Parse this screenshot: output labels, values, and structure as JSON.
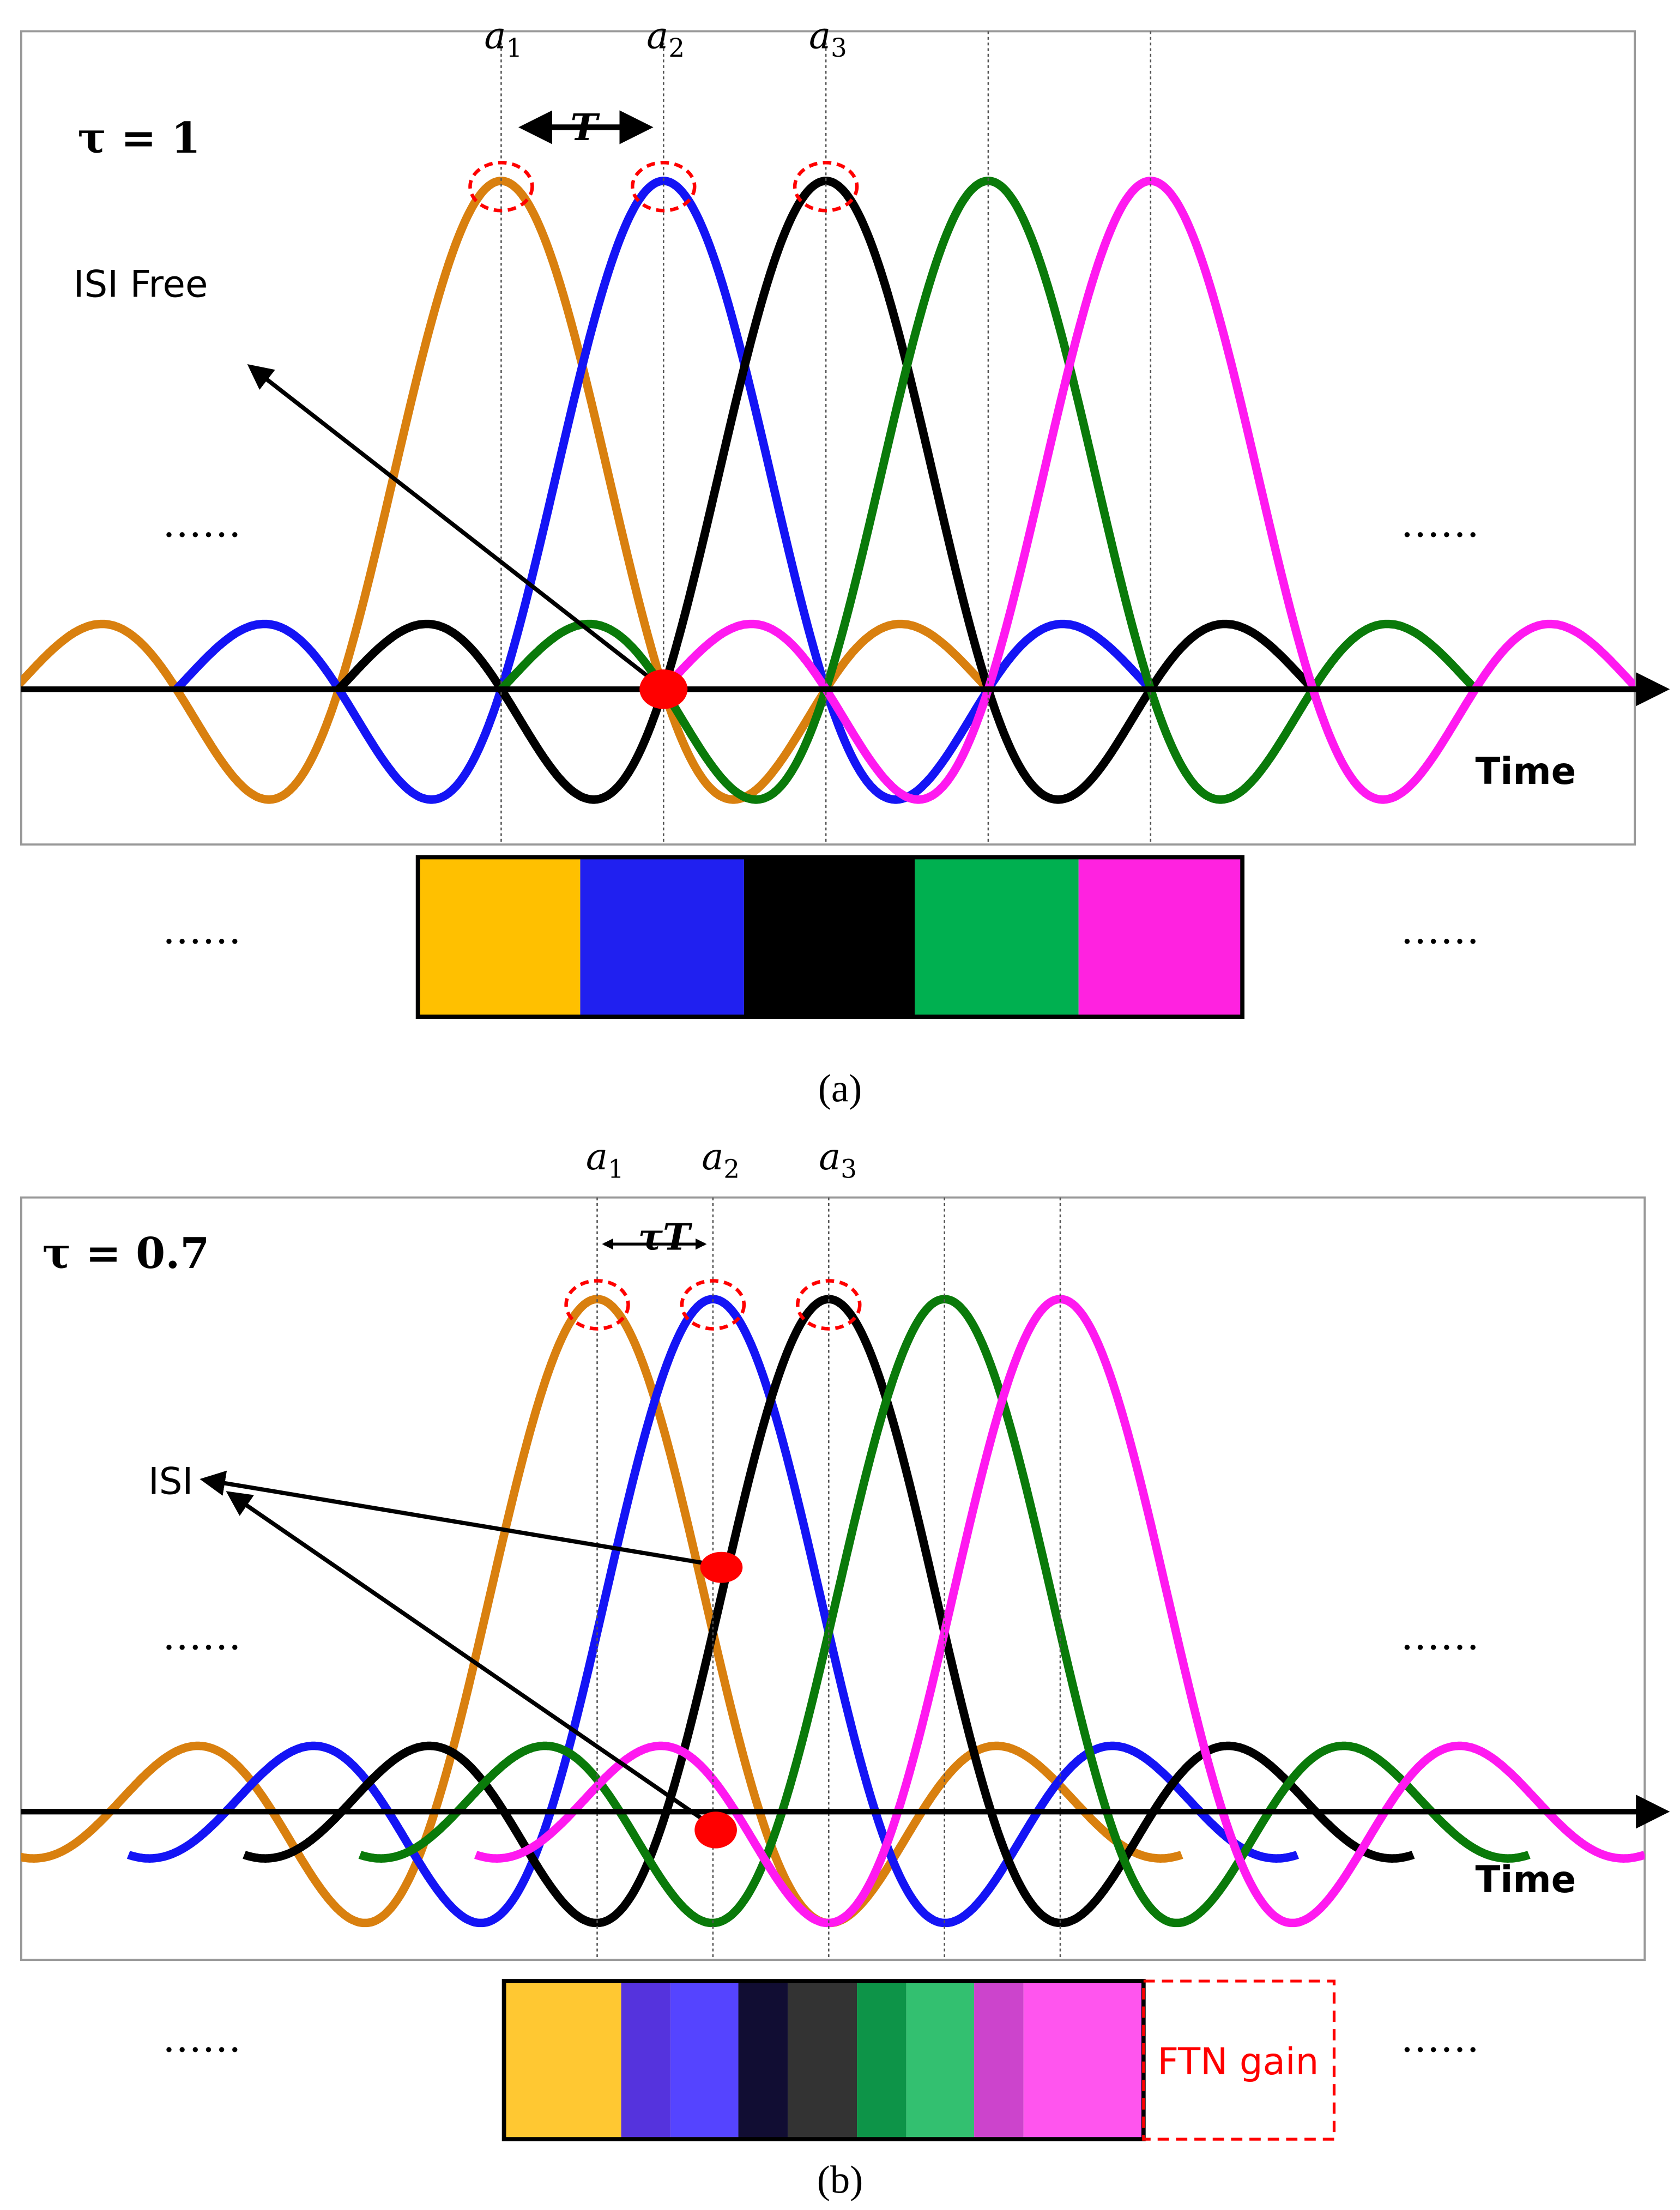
{
  "panel_a": {
    "tau_label": "τ = 1",
    "symbols": [
      {
        "base": "a",
        "sub": "1"
      },
      {
        "base": "a",
        "sub": "2"
      },
      {
        "base": "a",
        "sub": "3"
      }
    ],
    "spacing_label": "T",
    "annotation": "ISI Free",
    "axis_label": "Time",
    "ellipsis": [
      "……",
      "……",
      "……",
      "……"
    ],
    "caption": "(a)"
  },
  "panel_b": {
    "tau_label": "τ = 0.7",
    "symbols": [
      {
        "base": "a",
        "sub": "1"
      },
      {
        "base": "a",
        "sub": "2"
      },
      {
        "base": "a",
        "sub": "3"
      }
    ],
    "spacing_label": "τT",
    "annotation": "ISI",
    "axis_label": "Time",
    "ellipsis": [
      "……",
      "……",
      "……",
      "……"
    ],
    "gain_label": "FTN gain",
    "caption": "(b)"
  }
}
